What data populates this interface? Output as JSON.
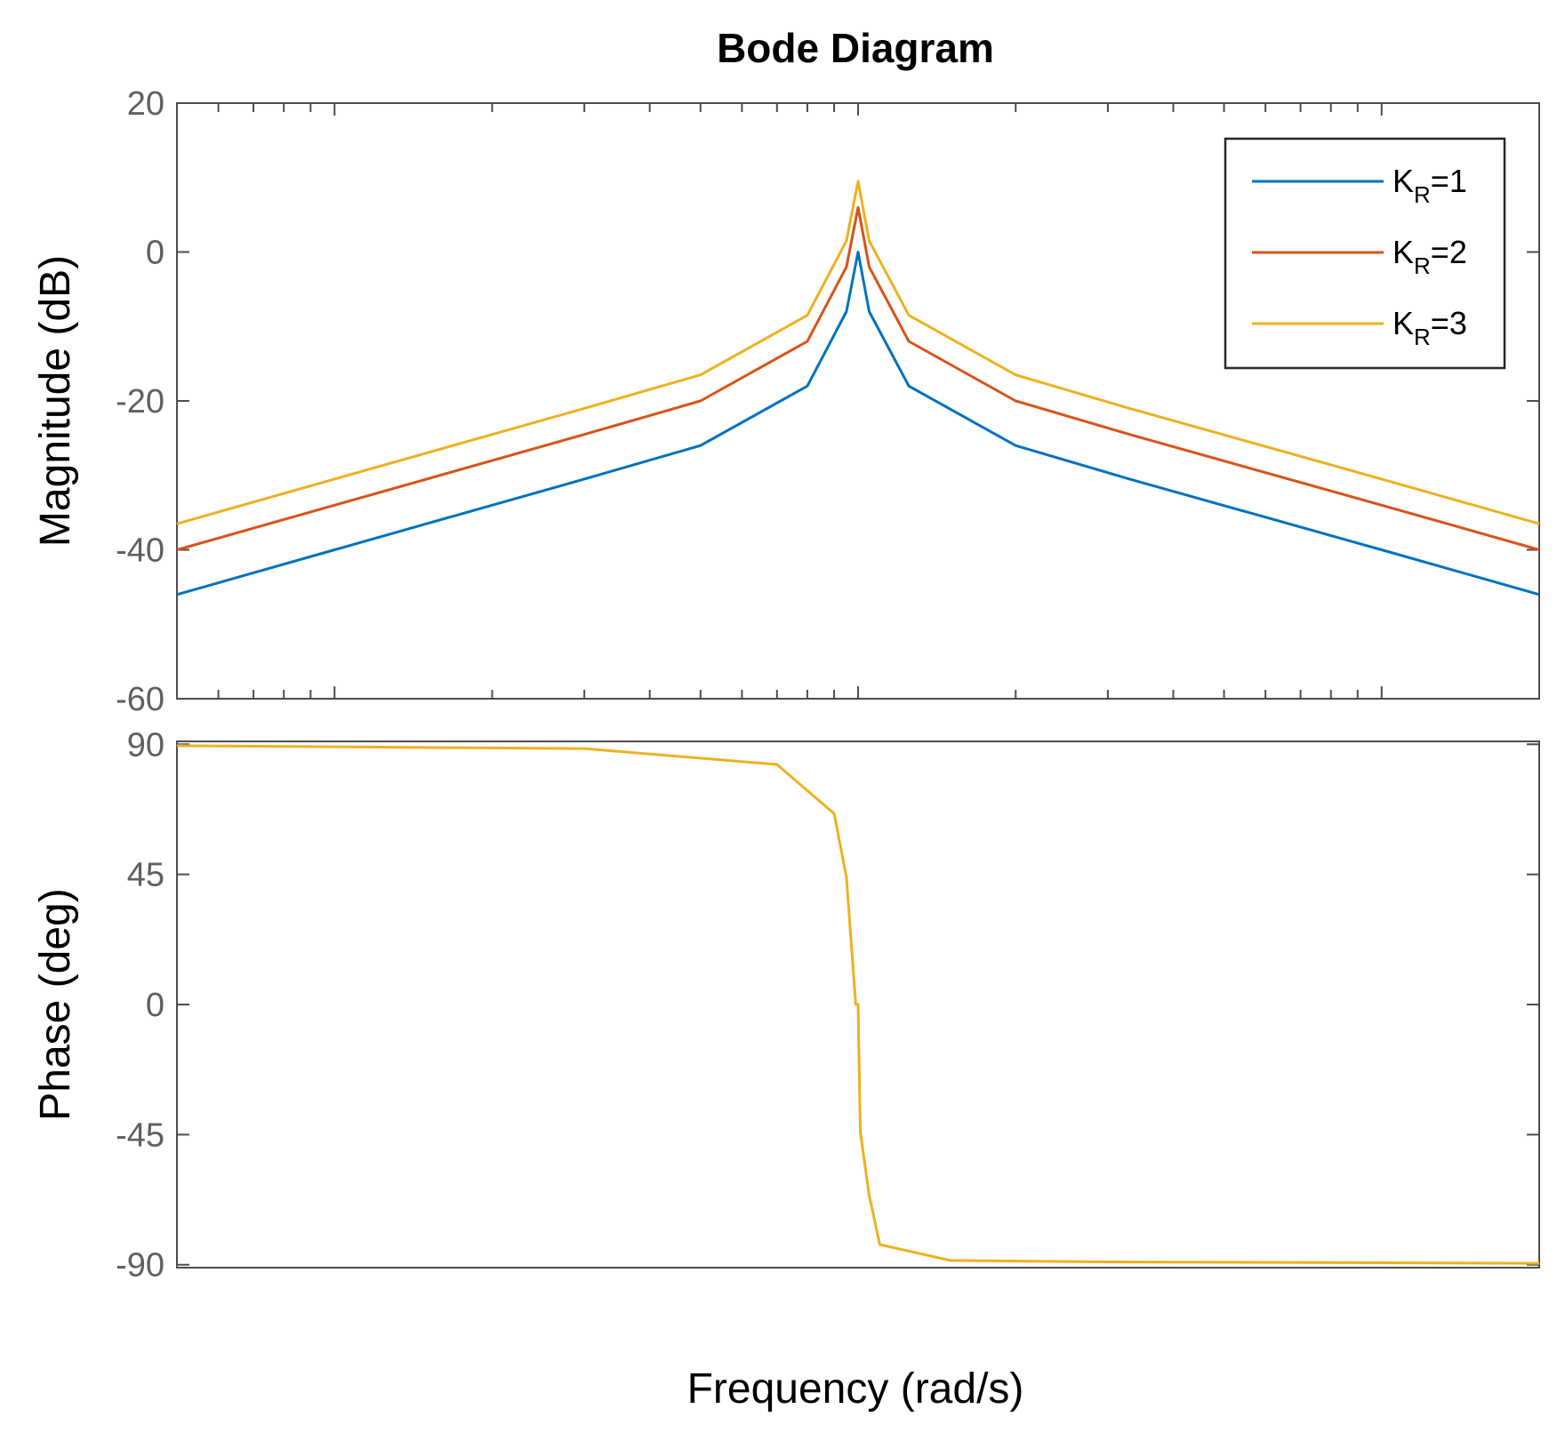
{
  "chart_data": {
    "type": "line",
    "title": "Bode Diagram",
    "xlabel": "Frequency  (rad/s)",
    "x_scale": "log",
    "x_range_relative_to_resonance": [
      0.05,
      20
    ],
    "resonance_frequency_relative": 1,
    "x_tick_labels": [],
    "magnitude": {
      "ylabel": "Magnitude (dB)",
      "ylim": [
        -60,
        20
      ],
      "yticks": [
        20,
        0,
        -20,
        -40,
        -60
      ],
      "series": [
        {
          "name": "K_R=1",
          "gain": 1,
          "color": "#0072BD",
          "x_rel": [
            0.05,
            0.1,
            0.3,
            0.5,
            0.8,
            0.95,
            1.0,
            1.05,
            1.25,
            2,
            3.3,
            10,
            20
          ],
          "db": [
            -46,
            -40,
            -30.5,
            -26,
            -18,
            -8,
            0,
            -8,
            -18,
            -26,
            -30.5,
            -40,
            -46
          ]
        },
        {
          "name": "K_R=2",
          "gain": 2,
          "color": "#D95319",
          "x_rel": [
            0.05,
            0.1,
            0.3,
            0.5,
            0.8,
            0.95,
            1.0,
            1.05,
            1.25,
            2,
            3.3,
            10,
            20
          ],
          "db": [
            -40,
            -34,
            -24.5,
            -20,
            -12,
            -2,
            6,
            -2,
            -12,
            -20,
            -24.5,
            -34,
            -40
          ]
        },
        {
          "name": "K_R=3",
          "gain": 3,
          "color": "#EDB120",
          "x_rel": [
            0.05,
            0.1,
            0.3,
            0.5,
            0.8,
            0.95,
            1.0,
            1.05,
            1.25,
            2,
            3.3,
            10,
            20
          ],
          "db": [
            -36.5,
            -30.5,
            -21,
            -16.5,
            -8.5,
            1.5,
            9.5,
            1.5,
            -8.5,
            -16.5,
            -21,
            -30.5,
            -36.5
          ]
        }
      ]
    },
    "phase": {
      "ylabel": "Phase (deg)",
      "ylim": [
        -91,
        91
      ],
      "yticks": [
        90,
        45,
        0,
        -45,
        -90
      ],
      "series": [
        {
          "name": "phase",
          "color": "#EDB120",
          "x_rel": [
            0.05,
            0.3,
            0.7,
            0.9,
            0.95,
            0.99,
            1.0,
            1.01,
            1.05,
            1.1,
            1.5,
            3,
            20
          ],
          "deg": [
            89.5,
            88.5,
            83,
            66,
            44,
            0,
            0,
            -44,
            -66,
            -83,
            -88.5,
            -89,
            -89.5
          ]
        }
      ]
    },
    "legend": {
      "position": "top-right",
      "entries": [
        {
          "base": "K",
          "sub": "R",
          "suffix": "=1"
        },
        {
          "base": "K",
          "sub": "R",
          "suffix": "=2"
        },
        {
          "base": "K",
          "sub": "R",
          "suffix": "=3"
        }
      ]
    }
  }
}
